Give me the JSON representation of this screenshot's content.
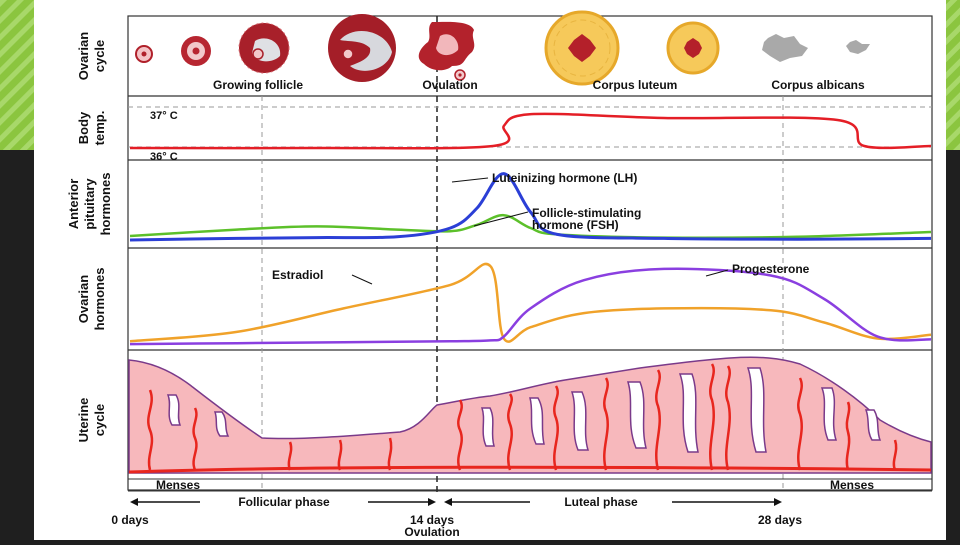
{
  "colors": {
    "accent_green": "#8bc53f",
    "background_dark": "#1f1f1f",
    "temp_line": "#e41e26",
    "lh_line": "#2b3fd6",
    "fsh_line": "#5cc02a",
    "estradiol_line": "#f0a22a",
    "progesterone_line": "#8a3fe0",
    "endometrium": "#f7b8bc",
    "vessel": "#e8261e"
  },
  "rows": {
    "ovarian_cycle": [
      "Ovarian",
      "cycle"
    ],
    "body_temp": [
      "Body",
      "temp."
    ],
    "pituitary": [
      "Anterior",
      "pituitary",
      "hormones"
    ],
    "ovarian_hormones": [
      "Ovarian",
      "hormones"
    ],
    "uterine": [
      "Uterine",
      "cycle"
    ]
  },
  "ovarian": {
    "growing_follicle": "Growing follicle",
    "ovulation": "Ovulation",
    "corpus_luteum": "Corpus luteum",
    "corpus_albicans": "Corpus albicans"
  },
  "temp": {
    "high": "37° C",
    "low": "36° C"
  },
  "pituitary": {
    "lh": "Luteinizing hormone (LH)",
    "fsh": [
      "Follicle-stimulating",
      "hormone (FSH)"
    ]
  },
  "ovarian_hormones": {
    "estradiol": "Estradiol",
    "progesterone": "Progesterone"
  },
  "phases": {
    "menses_left": "Menses",
    "follicular": "Follicular phase",
    "luteal": "Luteal phase",
    "menses_right": "Menses"
  },
  "days": {
    "start": "0 days",
    "mid": "14 days",
    "mid_sub": "Ovulation",
    "end": "28 days"
  },
  "chart_data": [
    {
      "type": "line",
      "title": "Body temp.",
      "x": [
        0,
        7,
        13.6,
        14,
        14.5,
        16,
        20,
        26.5,
        27.5,
        30
      ],
      "series": [
        {
          "name": "Body temperature",
          "values": [
            36.0,
            36.0,
            36.05,
            36.55,
            36.8,
            36.85,
            36.75,
            36.7,
            36.05,
            36.05
          ]
        }
      ],
      "ylim": [
        35.8,
        37.2
      ]
    },
    {
      "type": "line",
      "title": "Anterior pituitary hormones",
      "x": [
        0,
        4,
        7,
        10,
        12,
        13,
        14,
        15,
        16,
        20,
        25,
        30
      ],
      "series": [
        {
          "name": "Luteinizing hormone (LH)",
          "values": [
            5,
            7,
            8,
            9,
            20,
            45,
            88,
            40,
            12,
            7,
            6,
            7
          ]
        },
        {
          "name": "Follicle-stimulating hormone (FSH)",
          "values": [
            10,
            18,
            22,
            18,
            16,
            24,
            36,
            20,
            12,
            8,
            9,
            15
          ]
        }
      ],
      "ylim": [
        0,
        100
      ]
    },
    {
      "type": "line",
      "title": "Ovarian hormones",
      "x": [
        0,
        4,
        8,
        12,
        13.5,
        14,
        15,
        17,
        20,
        24,
        26,
        28,
        30
      ],
      "series": [
        {
          "name": "Estradiol",
          "values": [
            5,
            15,
            40,
            65,
            85,
            8,
            20,
            35,
            40,
            38,
            25,
            8,
            12
          ]
        },
        {
          "name": "Progesterone",
          "values": [
            2,
            3,
            4,
            5,
            6,
            10,
            40,
            70,
            82,
            75,
            50,
            10,
            7
          ]
        }
      ],
      "ylim": [
        0,
        100
      ]
    }
  ]
}
